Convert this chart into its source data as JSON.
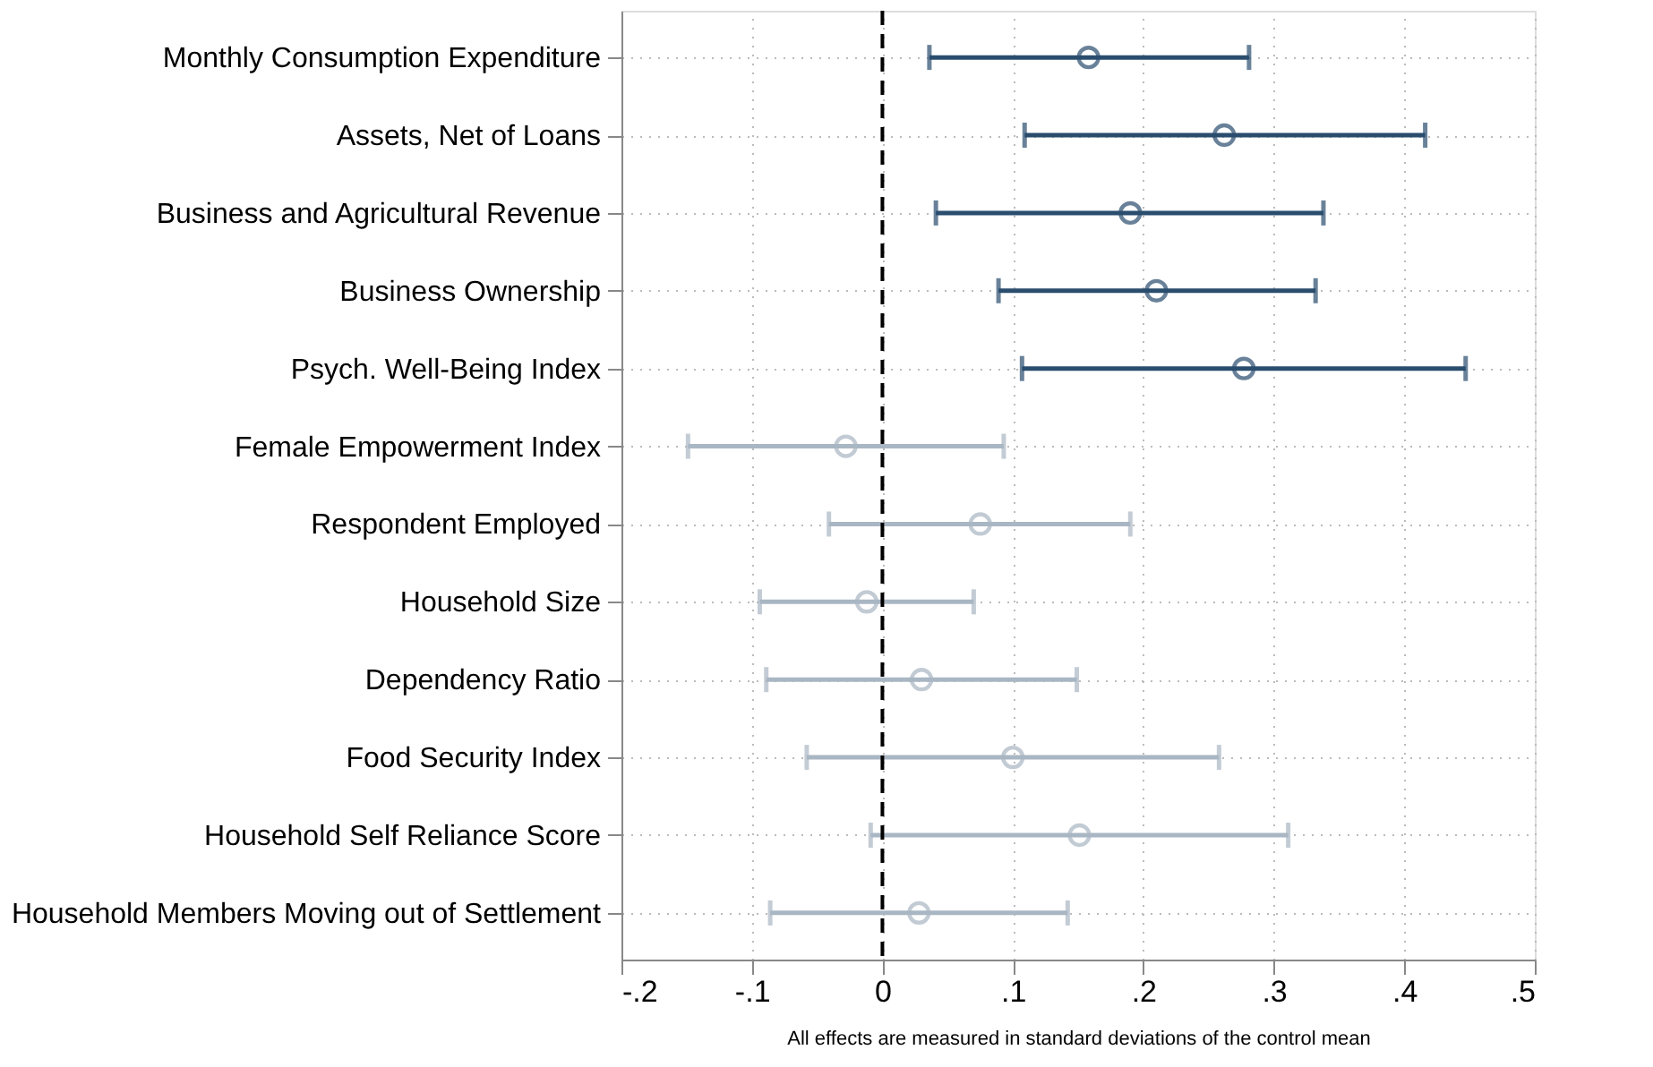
{
  "chart_data": {
    "type": "scatter",
    "categories": [
      "Monthly Consumption Expenditure",
      "Assets, Net of Loans",
      "Business and Agricultural Revenue",
      "Business Ownership",
      "Psych. Well-Being Index",
      "Female Empowerment Index",
      "Respondent Employed",
      "Household Size",
      "Dependency Ratio",
      "Food Security Index",
      "Household Self Reliance Score",
      "Household Members Moving out of Settlement"
    ],
    "series": [
      {
        "color": "#2a4d6e",
        "values": [
          0.158,
          0.262,
          0.19,
          0.21,
          0.277,
          null,
          null,
          null,
          null,
          null,
          null,
          null
        ],
        "errors": [
          [
            0.036,
            0.281
          ],
          [
            0.109,
            0.416
          ],
          [
            0.041,
            0.338
          ],
          [
            0.089,
            0.332
          ],
          [
            0.107,
            0.447
          ],
          null,
          null,
          null,
          null,
          null,
          null,
          null
        ]
      },
      {
        "color": "#a9b6c3",
        "values": [
          null,
          null,
          null,
          null,
          null,
          -0.028,
          0.075,
          -0.012,
          0.03,
          0.1,
          0.151,
          0.028
        ],
        "errors": [
          null,
          null,
          null,
          null,
          null,
          [
            -0.149,
            0.093
          ],
          [
            -0.041,
            0.19
          ],
          [
            -0.094,
            0.07
          ],
          [
            -0.089,
            0.149
          ],
          [
            -0.058,
            0.258
          ],
          [
            -0.009,
            0.311
          ],
          [
            -0.086,
            0.142
          ]
        ]
      }
    ],
    "orientation": "horizontal",
    "marker": "circle",
    "xlabel": "All effects are measured in standard deviations of the control mean",
    "xlim": [
      -0.2,
      0.5
    ],
    "xticks": [
      {
        "value": -0.2,
        "label": "-.2"
      },
      {
        "value": -0.1,
        "label": "-.1"
      },
      {
        "value": 0,
        "label": "0"
      },
      {
        "value": 0.1,
        "label": ".1"
      },
      {
        "value": 0.2,
        "label": ".2"
      },
      {
        "value": 0.3,
        "label": ".3"
      },
      {
        "value": 0.4,
        "label": ".4"
      },
      {
        "value": 0.5,
        "label": ".5"
      }
    ],
    "ref_lines": [
      {
        "axis": "x",
        "value": 0,
        "color": "#000000",
        "line_style": "dashed"
      }
    ],
    "grid": true,
    "legend": false
  }
}
